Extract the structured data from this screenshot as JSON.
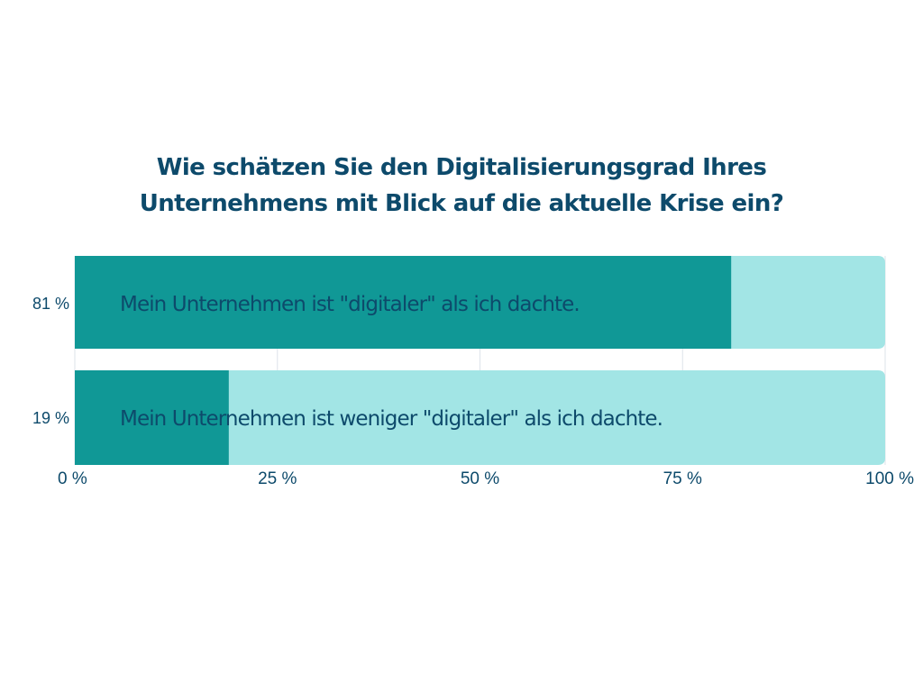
{
  "chart_data": {
    "type": "bar",
    "orientation": "horizontal",
    "stacked_against_total": true,
    "title_lines": [
      "Wie schätzen Sie den Digitalisierungsgrad Ihres",
      "Unternehmens mit Blick auf die aktuelle Krise ein?"
    ],
    "categories": [
      "Mein Unternehmen ist \"digitaler\" als ich dachte.",
      "Mein Unternehmen ist weniger \"digitaler\" als ich dachte."
    ],
    "values": [
      81,
      19
    ],
    "value_labels": [
      "81 %",
      "19 %"
    ],
    "xlim": [
      0,
      100
    ],
    "xticks": [
      0,
      25,
      50,
      75,
      100
    ],
    "xtick_labels": [
      "0 %",
      "25 %",
      "50 %",
      "75 %",
      "100 %"
    ],
    "grid": true,
    "legend": "none",
    "colors": {
      "value": "#109896",
      "remainder": "#a2e5e5",
      "text": "#0d4a6b",
      "grid": "#dde3ea"
    }
  }
}
